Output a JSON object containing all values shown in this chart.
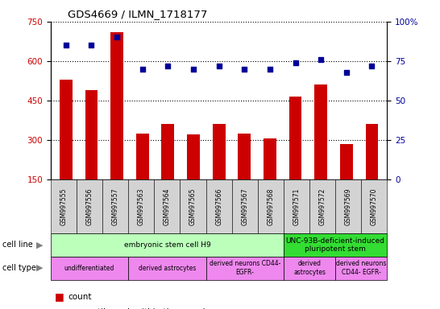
{
  "title": "GDS4669 / ILMN_1718177",
  "samples": [
    "GSM997555",
    "GSM997556",
    "GSM997557",
    "GSM997563",
    "GSM997564",
    "GSM997565",
    "GSM997566",
    "GSM997567",
    "GSM997568",
    "GSM997571",
    "GSM997572",
    "GSM997569",
    "GSM997570"
  ],
  "counts": [
    530,
    490,
    710,
    325,
    360,
    320,
    360,
    325,
    305,
    465,
    510,
    285,
    360
  ],
  "percentiles": [
    85,
    85,
    90,
    70,
    72,
    70,
    72,
    70,
    70,
    74,
    76,
    68,
    72
  ],
  "ylim_left": [
    150,
    750
  ],
  "ylim_right": [
    0,
    100
  ],
  "yticks_left": [
    150,
    300,
    450,
    600,
    750
  ],
  "yticks_right": [
    0,
    25,
    50,
    75,
    100
  ],
  "bar_color": "#cc0000",
  "dot_color": "#000099",
  "bar_width": 0.5,
  "cell_line_groups": [
    {
      "label": "embryonic stem cell H9",
      "start": 0,
      "end": 9,
      "color": "#bbffbb"
    },
    {
      "label": "UNC-93B-deficient-induced\npluripotent stem",
      "start": 9,
      "end": 13,
      "color": "#33dd33"
    }
  ],
  "cell_type_groups": [
    {
      "label": "undifferentiated",
      "start": 0,
      "end": 3,
      "color": "#ee88ee"
    },
    {
      "label": "derived astrocytes",
      "start": 3,
      "end": 6,
      "color": "#ee88ee"
    },
    {
      "label": "derived neurons CD44-\nEGFR-",
      "start": 6,
      "end": 9,
      "color": "#ee88ee"
    },
    {
      "label": "derived\nastrocytes",
      "start": 9,
      "end": 11,
      "color": "#ee88ee"
    },
    {
      "label": "derived neurons\nCD44- EGFR-",
      "start": 11,
      "end": 13,
      "color": "#ee88ee"
    }
  ]
}
